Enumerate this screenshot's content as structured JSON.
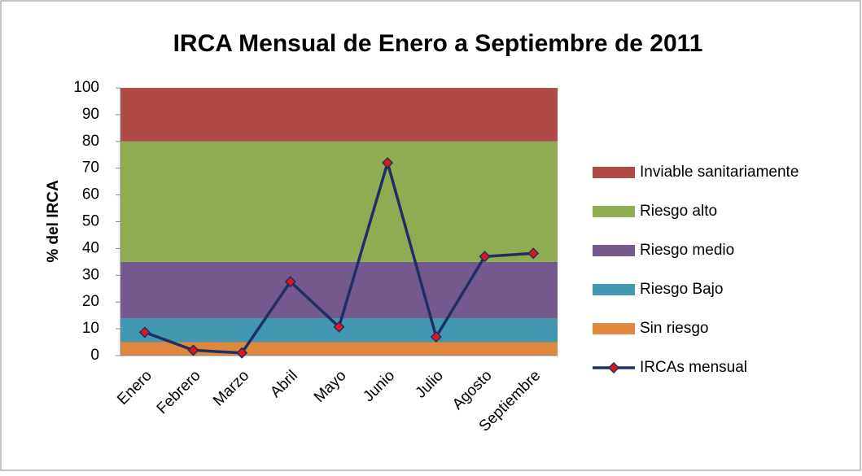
{
  "chart_data": {
    "type": "combo",
    "title": "IRCA Mensual de Enero a Septiembre de 2011",
    "y_label": "% del IRCA",
    "categories": [
      "Enero",
      "Febrero",
      "Marzo",
      "Abril",
      "Mayo",
      "Junio",
      "Julio",
      "Agosto",
      "Septiembre"
    ],
    "ylim": [
      0,
      100
    ],
    "yticks": [
      0,
      10,
      20,
      30,
      40,
      50,
      60,
      70,
      80,
      90,
      100
    ],
    "series": [
      {
        "name": "Sin riesgo",
        "type": "area",
        "color": "#e0873e",
        "values": [
          5,
          5,
          5,
          5,
          5,
          5,
          5,
          5,
          5
        ]
      },
      {
        "name": "Riesgo Bajo",
        "type": "area",
        "color": "#4298b0",
        "values": [
          9,
          9,
          9,
          9,
          9,
          9,
          9,
          9,
          9
        ]
      },
      {
        "name": "Riesgo medio",
        "type": "area",
        "color": "#74598e",
        "values": [
          21,
          21,
          21,
          21,
          21,
          21,
          21,
          21,
          21
        ]
      },
      {
        "name": "Riesgo alto",
        "type": "area",
        "color": "#8fac52",
        "values": [
          45,
          45,
          45,
          45,
          45,
          45,
          45,
          45,
          45
        ]
      },
      {
        "name": "Inviable sanitariamente",
        "type": "area",
        "color": "#b04a47",
        "values": [
          20,
          20,
          20,
          20,
          20,
          20,
          20,
          20,
          20
        ]
      },
      {
        "name": "IRCAs mensual",
        "type": "line",
        "color": "#1f2f63",
        "marker_color": "#e0161b",
        "values": [
          8.7,
          2,
          1,
          27.6,
          10.7,
          72,
          7,
          37,
          38.2
        ]
      }
    ]
  }
}
